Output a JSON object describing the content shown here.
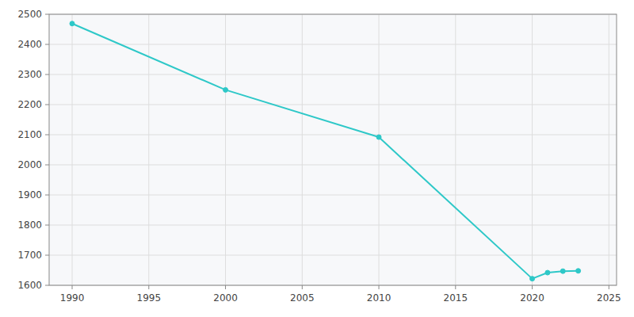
{
  "chart_data": {
    "type": "line",
    "x": [
      1990,
      2000,
      2010,
      2020,
      2021,
      2022,
      2023
    ],
    "values": [
      2469,
      2249,
      2092,
      1622,
      1642,
      1647,
      1648
    ],
    "color": "#2ec8c8",
    "marker": "circle",
    "xlim": [
      1988.5,
      2025.5
    ],
    "ylim": [
      1600,
      2500
    ],
    "xticks": [
      1990,
      1995,
      2000,
      2005,
      2010,
      2015,
      2020,
      2025
    ],
    "yticks": [
      1600,
      1700,
      1800,
      1900,
      2000,
      2100,
      2200,
      2300,
      2400,
      2500
    ],
    "grid": true
  }
}
